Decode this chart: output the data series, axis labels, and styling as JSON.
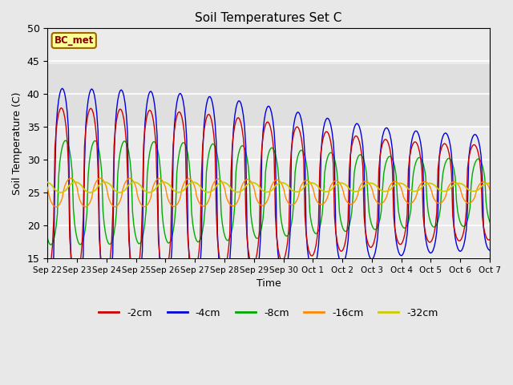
{
  "title": "Soil Temperatures Set C",
  "xlabel": "Time",
  "ylabel": "Soil Temperature (C)",
  "ylim": [
    15,
    50
  ],
  "annotation": "BC_met",
  "fig_facecolor": "#e8e8e8",
  "ax_facecolor": "#ebebeb",
  "series_colors": {
    "-2cm": "#cc0000",
    "-4cm": "#0000dd",
    "-8cm": "#00aa00",
    "-16cm": "#ff8800",
    "-32cm": "#cccc00"
  },
  "x_tick_labels": [
    "Sep 22",
    "Sep 23",
    "Sep 24",
    "Sep 25",
    "Sep 26",
    "Sep 27",
    "Sep 28",
    "Sep 29",
    "Sep 30",
    "Oct 1",
    "Oct 2",
    "Oct 3",
    "Oct 4",
    "Oct 5",
    "Oct 6",
    "Oct 7"
  ],
  "n_days": 16
}
